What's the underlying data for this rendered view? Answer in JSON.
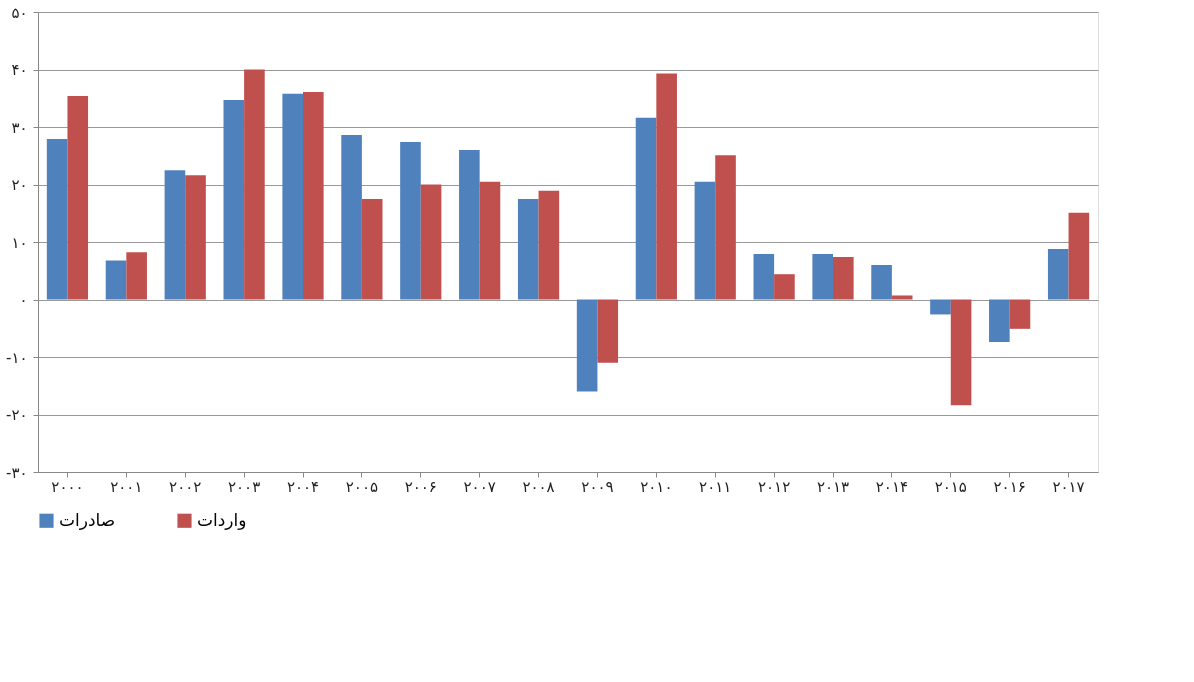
{
  "chart_data": {
    "type": "bar",
    "categories": [
      "۲۰۰۰",
      "۲۰۰۱",
      "۲۰۰۲",
      "۲۰۰۳",
      "۲۰۰۴",
      "۲۰۰۵",
      "۲۰۰۶",
      "۲۰۰۷",
      "۲۰۰۸",
      "۲۰۰۹",
      "۲۰۱۰",
      "۲۰۱۱",
      "۲۰۱۲",
      "۲۰۱۳",
      "۲۰۱۴",
      "۲۰۱۵",
      "۲۰۱۶",
      "۲۰۱۷"
    ],
    "series": [
      {
        "name": "صادرات",
        "color": "#4f81bd",
        "values": [
          27.9,
          6.8,
          22.5,
          34.7,
          35.8,
          28.6,
          27.4,
          26,
          17.5,
          -16,
          31.6,
          20.5,
          7.9,
          7.9,
          6,
          -2.6,
          -7.4,
          8.8
        ]
      },
      {
        "name": "واردات",
        "color": "#c0504d",
        "values": [
          35.4,
          8.2,
          21.6,
          40,
          36.1,
          17.5,
          20,
          20.5,
          18.9,
          -11,
          39.3,
          25.1,
          4.4,
          7.4,
          0.7,
          -18.4,
          -5.1,
          15.1
        ]
      }
    ],
    "ylim": [
      -30,
      50
    ],
    "yticks": [
      {
        "value": -30,
        "label": "-۳۰"
      },
      {
        "value": -20,
        "label": "-۲۰"
      },
      {
        "value": -10,
        "label": "-۱۰"
      },
      {
        "value": 0,
        "label": "۰"
      },
      {
        "value": 10,
        "label": "۱۰"
      },
      {
        "value": 20,
        "label": "۲۰"
      },
      {
        "value": 30,
        "label": "۳۰"
      },
      {
        "value": 40,
        "label": "۴۰"
      },
      {
        "value": 50,
        "label": "۵۰"
      }
    ],
    "grid": "y",
    "legend": "bottom"
  }
}
